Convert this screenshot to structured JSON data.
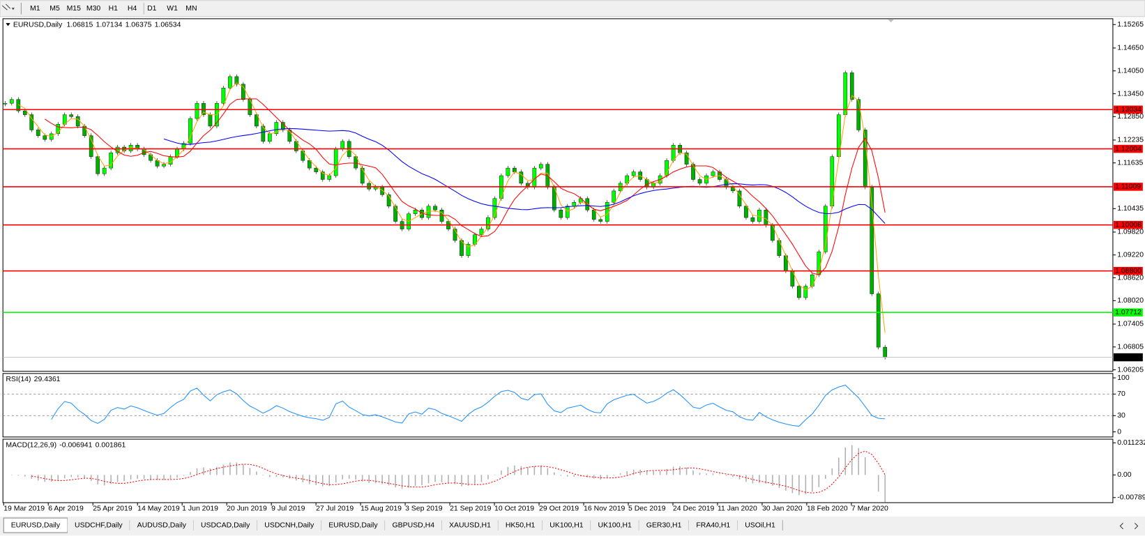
{
  "toolbar": {
    "timeframes": [
      "M1",
      "M5",
      "M15",
      "M30",
      "H1",
      "H4",
      "D1",
      "W1",
      "MN"
    ]
  },
  "chart_data": [
    {
      "type": "candlestick",
      "symbol": "EURUSD,Daily",
      "ohlc": [
        1.06815,
        1.07134,
        1.06375,
        1.06534
      ],
      "closes": [
        1.132,
        1.133,
        1.13,
        1.129,
        1.125,
        1.1235,
        1.1225,
        1.124,
        1.1265,
        1.129,
        1.1285,
        1.126,
        1.1235,
        1.118,
        1.1135,
        1.115,
        1.119,
        1.1205,
        1.1195,
        1.121,
        1.12,
        1.1185,
        1.117,
        1.1155,
        1.116,
        1.118,
        1.12,
        1.1215,
        1.128,
        1.132,
        1.129,
        1.126,
        1.132,
        1.136,
        1.139,
        1.137,
        1.133,
        1.129,
        1.126,
        1.122,
        1.124,
        1.127,
        1.125,
        1.122,
        1.1195,
        1.117,
        1.115,
        1.114,
        1.112,
        1.113,
        1.12,
        1.122,
        1.118,
        1.115,
        1.111,
        1.1095,
        1.11,
        1.108,
        1.105,
        1.101,
        1.099,
        1.103,
        1.104,
        1.102,
        1.105,
        1.104,
        1.101,
        1.099,
        1.096,
        1.092,
        1.095,
        1.0975,
        1.099,
        1.102,
        1.107,
        1.113,
        1.115,
        1.114,
        1.111,
        1.11,
        1.115,
        1.116,
        1.11,
        1.104,
        1.102,
        1.105,
        1.106,
        1.107,
        1.104,
        1.1015,
        1.101,
        1.106,
        1.109,
        1.111,
        1.113,
        1.114,
        1.112,
        1.11,
        1.111,
        1.113,
        1.117,
        1.121,
        1.119,
        1.116,
        1.112,
        1.111,
        1.113,
        1.114,
        1.112,
        1.11,
        1.109,
        1.105,
        1.102,
        1.101,
        1.104,
        1.1,
        1.096,
        1.092,
        1.088,
        1.084,
        1.081,
        1.084,
        1.087,
        1.093,
        1.105,
        1.118,
        1.129,
        1.14,
        1.133,
        1.125,
        1.11,
        1.082,
        1.068,
        1.06534
      ],
      "up_color": "#00ff00",
      "down_color": "#00b000",
      "ma_colors": [
        "#ffa500",
        "#ff0000",
        "#0000ff"
      ],
      "ylim": [
        1.06205,
        1.15265
      ],
      "yticks": [
        {
          "value": 1.15265,
          "label": "1.15265"
        },
        {
          "value": 1.1465,
          "label": "1.14650"
        },
        {
          "value": 1.1405,
          "label": "1.14050"
        },
        {
          "value": 1.1345,
          "label": "1.13450"
        },
        {
          "value": 1.1285,
          "label": "1.12850"
        },
        {
          "value": 1.12235,
          "label": "1.12235"
        },
        {
          "value": 1.11635,
          "label": "1.11635"
        },
        {
          "value": 1.10435,
          "label": "1.10435"
        },
        {
          "value": 1.0982,
          "label": "1.09820"
        },
        {
          "value": 1.0922,
          "label": "1.09220"
        },
        {
          "value": 1.0862,
          "label": "1.08620"
        },
        {
          "value": 1.0802,
          "label": "1.08020"
        },
        {
          "value": 1.07405,
          "label": "1.07405"
        },
        {
          "value": 1.06805,
          "label": "1.06805"
        },
        {
          "value": 1.06205,
          "label": "1.06205"
        }
      ],
      "levels": [
        {
          "value": 1.13034,
          "color": "#ff0000"
        },
        {
          "value": 1.12004,
          "color": "#ff0000"
        },
        {
          "value": 1.11009,
          "color": "#ff0000"
        },
        {
          "value": 1.10008,
          "color": "#ff0000"
        },
        {
          "value": 1.088,
          "label": "1.08800",
          "color": "#ff0000"
        },
        {
          "value": 1.07712,
          "color": "#00ff00"
        }
      ],
      "x_labels": [
        "19 Mar 2019",
        "6 Apr 2019",
        "25 Apr 2019",
        "14 May 2019",
        "1 Jun 2019",
        "20 Jun 2019",
        "9 Jul 2019",
        "27 Jul 2019",
        "15 Aug 2019",
        "3 Sep 2019",
        "21 Sep 2019",
        "10 Oct 2019",
        "29 Oct 2019",
        "16 Nov 2019",
        "5 Dec 2019",
        "24 Dec 2019",
        "11 Jan 2020",
        "30 Jan 2020",
        "18 Feb 2020",
        "7 Mar 2020"
      ]
    },
    {
      "type": "rsi",
      "title": "RSI(14)",
      "value": 29.4361,
      "color": "#1e90ff",
      "ylim": [
        0,
        100
      ],
      "yticks": [
        100,
        70,
        30,
        0
      ]
    },
    {
      "type": "macd",
      "title": "MACD(12,26,9)",
      "values": [
        -0.006941,
        0.001861
      ],
      "histogram_color": "#b0b0b0",
      "signal_color": "#ff0000",
      "ylim": [
        -0.007894,
        0.011232
      ],
      "yticks": [
        0.011232,
        {
          "value": 0,
          "label": "0.00"
        },
        -0.007894
      ]
    }
  ],
  "tabs": [
    "EURUSD,Daily",
    "USDCHF,Daily",
    "AUDUSD,Daily",
    "USDCAD,Daily",
    "USDCNH,Daily",
    "EURUSD,Daily",
    "GBPUSD,H4",
    "XAUUSD,H1",
    "HK50,H1",
    "UK100,H1",
    "UK100,H1",
    "GER30,H1",
    "FRA40,H1",
    "USOil,H1"
  ]
}
